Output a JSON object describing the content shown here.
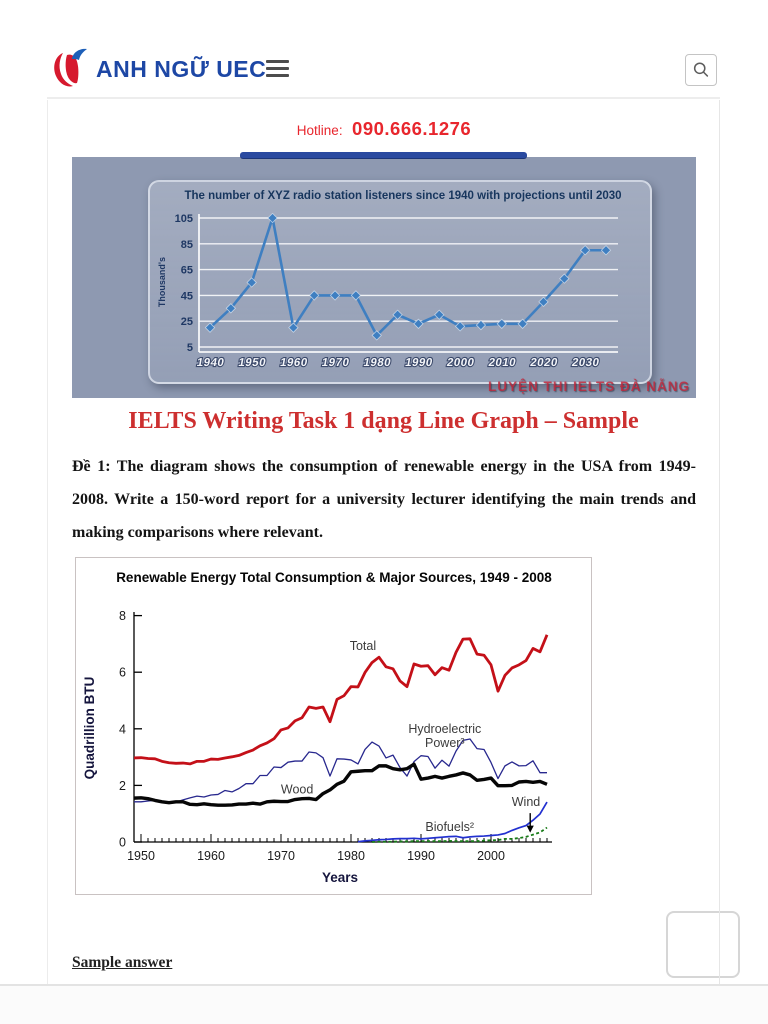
{
  "header": {
    "logo_text": "ANH NGỮ UEC",
    "hotline_label": "Hotline:",
    "hotline_number": "090.666.1276"
  },
  "hero": {
    "caption": "LUYỆN THI IELTS ĐÀ NẴNG"
  },
  "article": {
    "title": "IELTS Writing Task 1 dạng Line Graph – Sample",
    "prompt": "Đề 1: The diagram shows the consumption of renewable energy in the USA from 1949-2008. Write a 150-word report for a university lecturer identifying the main trends and making comparisons where relevant.",
    "sample_answer_label": "Sample answer"
  },
  "colors": {
    "brand_blue": "#1d47a5",
    "accent_red": "#e8262d",
    "heading_red": "#cd2f2f"
  },
  "chart_data": [
    {
      "type": "line",
      "title": "The number of XYZ radio station listeners since 1940 with projections until 2030",
      "ylabel": "Thousand's",
      "x": [
        1940,
        1945,
        1950,
        1955,
        1960,
        1965,
        1970,
        1975,
        1980,
        1985,
        1990,
        1995,
        2000,
        2005,
        2010,
        2015,
        2020,
        2025,
        2030,
        2035
      ],
      "values": [
        20,
        35,
        55,
        105,
        20,
        45,
        45,
        45,
        14,
        30,
        23,
        30,
        21,
        22,
        23,
        23,
        40,
        58,
        80,
        80
      ],
      "yticks": [
        5,
        25,
        45,
        65,
        85,
        105
      ],
      "xticks": [
        1940,
        1950,
        1960,
        1970,
        1980,
        1990,
        2000,
        2010,
        2020,
        2030
      ],
      "ylim": [
        5,
        110
      ],
      "grid": true,
      "legend": "none",
      "line_color": "#3f7fc1",
      "marker": "diamond"
    },
    {
      "type": "line",
      "title": "Renewable Energy Total Consumption & Major Sources, 1949 - 2008",
      "xlabel": "Years",
      "ylabel": "Quadrillion BTU",
      "ylim": [
        0,
        8
      ],
      "yticks": [
        0,
        2,
        4,
        6,
        8
      ],
      "xticks": [
        1950,
        1960,
        1970,
        1980,
        1990,
        2000
      ],
      "xlim": [
        1949,
        2008
      ],
      "grid": false,
      "legend": "inline-labels",
      "series": [
        {
          "name": "Total",
          "color": "#c41018",
          "width": 2.8,
          "x_start": 1949,
          "values": [
            2.97,
            2.98,
            2.95,
            2.94,
            2.85,
            2.8,
            2.78,
            2.79,
            2.76,
            2.85,
            2.85,
            2.93,
            2.92,
            2.97,
            3.01,
            3.06,
            3.16,
            3.25,
            3.4,
            3.5,
            3.65,
            3.96,
            4.03,
            4.28,
            4.39,
            4.77,
            4.72,
            4.77,
            4.25,
            5.04,
            5.17,
            5.49,
            5.48,
            5.99,
            6.34,
            6.53,
            6.19,
            6.12,
            5.69,
            5.49,
            6.29,
            6.21,
            6.23,
            5.91,
            6.16,
            6.07,
            6.7,
            7.17,
            7.18,
            6.64,
            6.6,
            6.26,
            5.33,
            5.89,
            6.15,
            6.26,
            6.41,
            6.84,
            6.72,
            7.32
          ]
        },
        {
          "name": "Hydroelectric Power³",
          "color": "#28288e",
          "width": 1.3,
          "x_start": 1949,
          "values": [
            1.42,
            1.42,
            1.45,
            1.47,
            1.44,
            1.39,
            1.41,
            1.49,
            1.56,
            1.62,
            1.59,
            1.66,
            1.68,
            1.82,
            1.77,
            1.89,
            2.06,
            2.06,
            2.35,
            2.35,
            2.65,
            2.63,
            2.82,
            2.86,
            2.86,
            3.18,
            3.15,
            2.98,
            2.33,
            2.94,
            2.93,
            2.9,
            2.76,
            3.27,
            3.53,
            3.39,
            2.97,
            3.07,
            2.63,
            2.33,
            2.84,
            3.05,
            3.02,
            2.61,
            2.89,
            2.68,
            3.21,
            3.59,
            3.64,
            3.3,
            3.27,
            2.81,
            2.24,
            2.69,
            2.83,
            2.69,
            2.7,
            2.87,
            2.45,
            2.45
          ]
        },
        {
          "name": "Wood",
          "color": "#060606",
          "width": 3.4,
          "x_start": 1949,
          "values": [
            1.55,
            1.56,
            1.53,
            1.47,
            1.42,
            1.39,
            1.42,
            1.42,
            1.33,
            1.32,
            1.35,
            1.32,
            1.3,
            1.3,
            1.31,
            1.34,
            1.34,
            1.37,
            1.34,
            1.42,
            1.44,
            1.43,
            1.43,
            1.5,
            1.53,
            1.54,
            1.5,
            1.71,
            1.84,
            2.04,
            2.15,
            2.48,
            2.5,
            2.52,
            2.52,
            2.69,
            2.69,
            2.59,
            2.55,
            2.59,
            2.75,
            2.22,
            2.26,
            2.32,
            2.26,
            2.32,
            2.37,
            2.44,
            2.37,
            2.18,
            2.21,
            2.26,
            1.99,
            1.99,
            2.0,
            2.12,
            2.14,
            2.11,
            2.14,
            2.04
          ]
        },
        {
          "name": "Biofuels²",
          "color": "#2230d0",
          "width": 1.7,
          "x_start": 1981,
          "values": [
            0.01,
            0.04,
            0.06,
            0.08,
            0.09,
            0.11,
            0.12,
            0.12,
            0.13,
            0.11,
            0.13,
            0.15,
            0.17,
            0.19,
            0.2,
            0.15,
            0.18,
            0.2,
            0.21,
            0.23,
            0.25,
            0.3,
            0.41,
            0.5,
            0.58,
            0.77,
            0.99,
            1.41
          ]
        },
        {
          "name": "Wind",
          "color": "#177a17",
          "width": 1.8,
          "dash": "3,2.5",
          "x_start": 1983,
          "values": [
            0.0,
            0.01,
            0.01,
            0.01,
            0.02,
            0.02,
            0.03,
            0.03,
            0.03,
            0.03,
            0.03,
            0.04,
            0.03,
            0.03,
            0.03,
            0.03,
            0.05,
            0.06,
            0.07,
            0.11,
            0.11,
            0.14,
            0.18,
            0.26,
            0.34,
            0.51
          ]
        }
      ],
      "annotations": [
        {
          "lines": [
            "Total"
          ],
          "x": 1981.7,
          "y": 6.78
        },
        {
          "lines": [
            "Hydroelectric",
            "Power³"
          ],
          "x": 1993.4,
          "y": 3.85
        },
        {
          "lines": [
            "Wood"
          ],
          "x": 1972.3,
          "y": 1.72
        },
        {
          "lines": [
            "Biofuels²"
          ],
          "x": 1994.1,
          "y": 0.38
        },
        {
          "lines": [
            "Wind"
          ],
          "x": 2005.0,
          "y": 1.28,
          "arrow": {
            "from": [
              2005.6,
              1.02
            ],
            "to": [
              2005.6,
              0.33
            ]
          }
        }
      ]
    }
  ]
}
